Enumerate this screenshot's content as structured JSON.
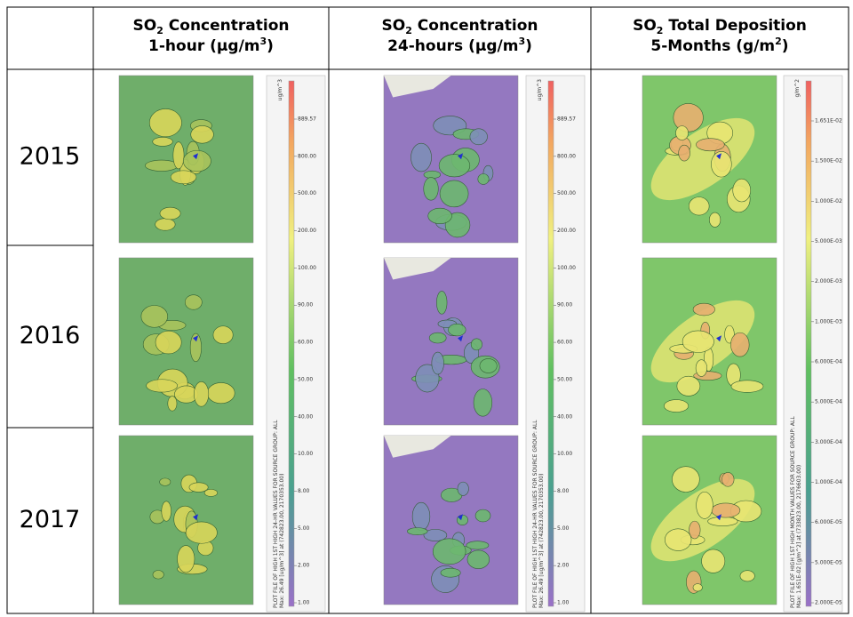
{
  "header": {
    "columns": [
      {
        "line1": [
          "SO",
          "2",
          " Concentration"
        ],
        "line2": [
          "1-hour (µg/m",
          "3",
          ")"
        ]
      },
      {
        "line1": [
          "SO",
          "2",
          " Concentration"
        ],
        "line2": [
          "24-hours (µg/m",
          "3",
          ")"
        ]
      },
      {
        "line1": [
          "SO",
          "2",
          " Total Deposition"
        ],
        "line2": [
          "5-Months (g/m",
          "2",
          ")"
        ]
      }
    ]
  },
  "rows": [
    "2015",
    "2016",
    "2017"
  ],
  "legends": [
    {
      "unit": "ug/m^3",
      "labels": [
        "889.57",
        "800.00",
        "500.00",
        "200.00",
        "100.00",
        "90.00",
        "60.00",
        "50.00",
        "40.00",
        "10.00",
        "8.00",
        "5.00",
        "2.00",
        "1.00"
      ],
      "caption": "PLOT FILE OF HIGH 1ST HIGH 24-HR VALUES FOR SOURCE GROUP: ALL",
      "max": "Max: 26.49 [ug/m^3] at (742823.00, 2170353.00)"
    },
    {
      "unit": "ug/m^3",
      "labels": [
        "889.57",
        "800.00",
        "500.00",
        "200.00",
        "100.00",
        "90.00",
        "60.00",
        "50.00",
        "40.00",
        "10.00",
        "8.00",
        "5.00",
        "2.00",
        "1.00"
      ],
      "caption": "PLOT FILE OF HIGH 1ST HIGH 24-HR VALUES FOR SOURCE GROUP: ALL",
      "max": "Max: 26.49 [ug/m^3] at (742823.00, 2170353.00)"
    },
    {
      "unit": "g/m^2",
      "labels": [
        "1.651E-02",
        "1.500E-02",
        "1.000E-02",
        "5.000E-03",
        "2.000E-03",
        "1.000E-03",
        "6.000E-04",
        "5.000E-04",
        "3.000E-04",
        "1.000E-04",
        "6.000E-05",
        "5.000E-05",
        "2.000E-05"
      ],
      "caption": "PLOT FILE OF HIGH 1ST HIGH MONTH VALUES FOR SOURCE GROUP: ALL",
      "max": "Max: 1.651E-02 [g/m^2] at (733823.00, 2176603.00)"
    }
  ]
}
